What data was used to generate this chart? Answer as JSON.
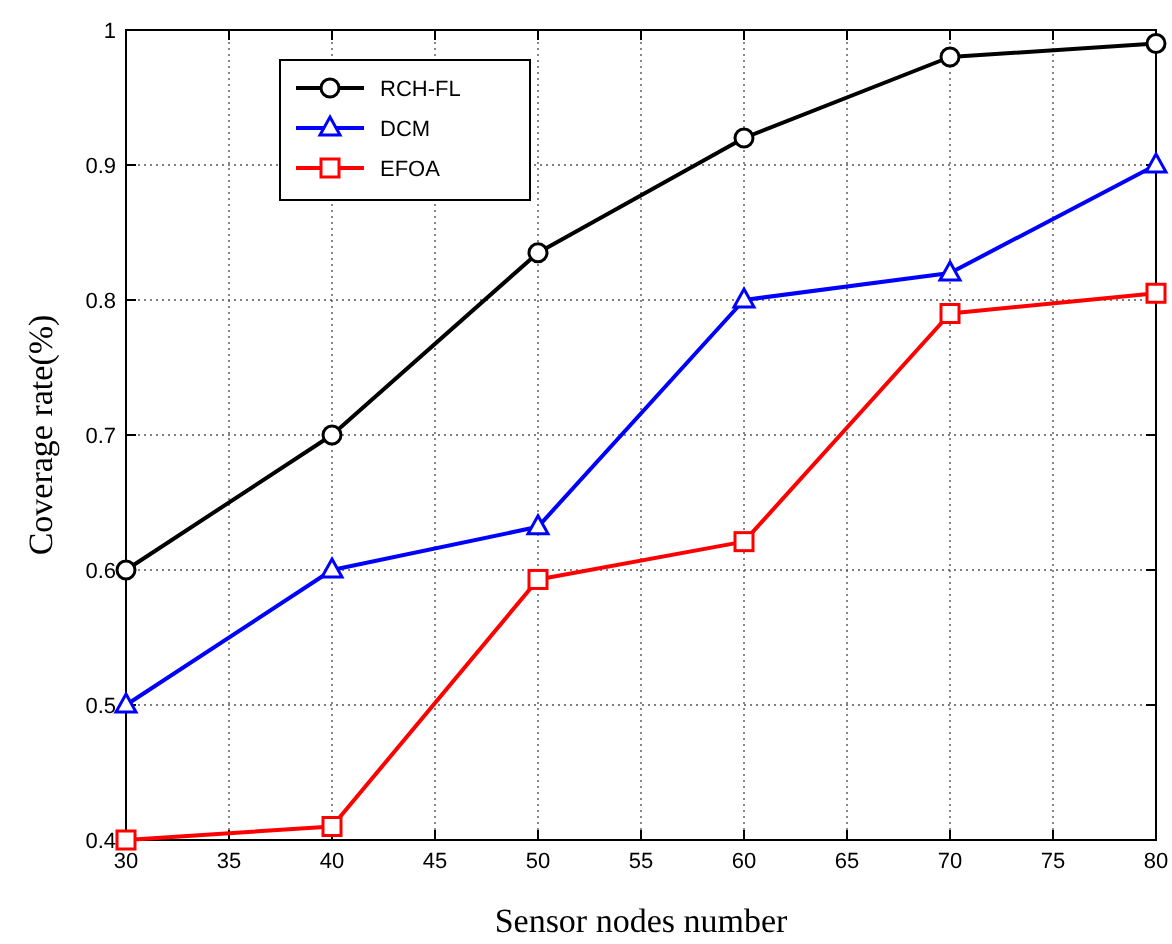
{
  "chart_data": {
    "type": "line",
    "xlabel": "Sensor nodes number",
    "ylabel": "Coverage rate(%)",
    "x": [
      30,
      40,
      50,
      60,
      70,
      80
    ],
    "xlim": [
      30,
      80
    ],
    "xticks": [
      30,
      35,
      40,
      45,
      50,
      55,
      60,
      65,
      70,
      75,
      80
    ],
    "ylim": [
      0.4,
      1
    ],
    "yticks": [
      0.4,
      0.5,
      0.6,
      0.7,
      0.8,
      0.9,
      {
        "value": 1,
        "label": "1"
      }
    ],
    "grid": true,
    "legend": "top left",
    "line_style": "solid",
    "series": [
      {
        "name": "RCH-FL",
        "color": "#000000",
        "marker": "circle",
        "values": [
          0.6,
          0.7,
          0.835,
          0.92,
          0.98,
          0.99
        ]
      },
      {
        "name": "DCM",
        "color": "#0000ff",
        "marker": "triangle",
        "values": [
          0.5,
          0.6,
          0.632,
          0.8,
          0.82,
          0.9
        ]
      },
      {
        "name": "EFOA",
        "color": "#ff0000",
        "marker": "square",
        "values": [
          0.4,
          0.41,
          0.593,
          0.621,
          0.79,
          0.805
        ]
      }
    ]
  }
}
